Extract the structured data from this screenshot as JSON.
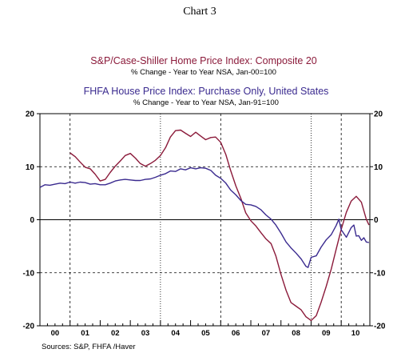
{
  "header": {
    "chart_number": "Chart 3",
    "series1_title": "S&P/Case-Shiller Home Price Index: Composite 20",
    "series1_subtitle": "% Change - Year to Year    NSA, Jan-00=100",
    "series2_title": "FHFA House Price Index: Purchase Only, United States",
    "series2_subtitle": "% Change - Year to Year    NSA, Jan-91=100"
  },
  "footer": {
    "sources": "Sources:  S&P, FHFA /Haver"
  },
  "colors": {
    "series1": "#8b1a3a",
    "series2": "#3a2a8f",
    "axis": "#000000",
    "grid": "#000000"
  },
  "chart_data": {
    "type": "line",
    "title": "Chart 3",
    "xlabel": "",
    "ylabel": "",
    "x_tick_labels": [
      "00",
      "01",
      "02",
      "03",
      "04",
      "05",
      "06",
      "07",
      "08",
      "09",
      "10"
    ],
    "x_range": [
      2000.0,
      2010.95
    ],
    "ylim": [
      -20,
      20
    ],
    "y_ticks": [
      -20,
      -10,
      0,
      10,
      20
    ],
    "y_tick_labels": [
      "-20",
      "-10",
      "0",
      "10",
      "20"
    ],
    "horizontal_gridlines": [
      0,
      10,
      -10
    ],
    "vertical_gridlines_dashed_years": [
      2001,
      2006,
      2010
    ],
    "vertical_gridlines_dotted_years": [
      2004,
      2009
    ],
    "legend": "titles above chart, colored to match series",
    "series": [
      {
        "name": "S&P/Case-Shiller Home Price Index: Composite 20",
        "color": "#8b1a3a",
        "points": [
          [
            2001.0,
            12.6
          ],
          [
            2001.17,
            11.9
          ],
          [
            2001.33,
            10.9
          ],
          [
            2001.5,
            9.9
          ],
          [
            2001.67,
            9.6
          ],
          [
            2001.83,
            8.6
          ],
          [
            2002.0,
            7.3
          ],
          [
            2002.17,
            7.6
          ],
          [
            2002.33,
            8.9
          ],
          [
            2002.5,
            10.1
          ],
          [
            2002.67,
            11.1
          ],
          [
            2002.83,
            12.1
          ],
          [
            2003.0,
            12.5
          ],
          [
            2003.17,
            11.6
          ],
          [
            2003.33,
            10.6
          ],
          [
            2003.5,
            10.1
          ],
          [
            2003.67,
            10.6
          ],
          [
            2003.83,
            11.2
          ],
          [
            2004.0,
            12.1
          ],
          [
            2004.17,
            13.6
          ],
          [
            2004.33,
            15.6
          ],
          [
            2004.5,
            16.8
          ],
          [
            2004.67,
            16.9
          ],
          [
            2004.83,
            16.3
          ],
          [
            2005.0,
            15.7
          ],
          [
            2005.17,
            16.5
          ],
          [
            2005.33,
            15.8
          ],
          [
            2005.5,
            15.1
          ],
          [
            2005.67,
            15.5
          ],
          [
            2005.83,
            15.6
          ],
          [
            2006.0,
            14.6
          ],
          [
            2006.17,
            12.3
          ],
          [
            2006.33,
            9.3
          ],
          [
            2006.5,
            6.4
          ],
          [
            2006.67,
            4.0
          ],
          [
            2006.83,
            1.3
          ],
          [
            2007.0,
            -0.2
          ],
          [
            2007.17,
            -1.2
          ],
          [
            2007.33,
            -2.4
          ],
          [
            2007.5,
            -3.6
          ],
          [
            2007.67,
            -4.5
          ],
          [
            2007.83,
            -6.8
          ],
          [
            2008.0,
            -10.3
          ],
          [
            2008.17,
            -13.3
          ],
          [
            2008.33,
            -15.6
          ],
          [
            2008.5,
            -16.3
          ],
          [
            2008.67,
            -17.0
          ],
          [
            2008.83,
            -18.3
          ],
          [
            2009.0,
            -19.0
          ],
          [
            2009.17,
            -18.1
          ],
          [
            2009.33,
            -15.6
          ],
          [
            2009.5,
            -12.6
          ],
          [
            2009.67,
            -9.3
          ],
          [
            2009.83,
            -5.6
          ],
          [
            2010.0,
            -1.8
          ],
          [
            2010.17,
            1.4
          ],
          [
            2010.33,
            3.5
          ],
          [
            2010.5,
            4.4
          ],
          [
            2010.67,
            3.3
          ],
          [
            2010.83,
            0.1
          ],
          [
            2010.92,
            -1.0
          ]
        ]
      },
      {
        "name": "FHFA House Price Index: Purchase Only, United States",
        "color": "#3a2a8f",
        "points": [
          [
            2000.0,
            6.1
          ],
          [
            2000.17,
            6.6
          ],
          [
            2000.33,
            6.5
          ],
          [
            2000.5,
            6.7
          ],
          [
            2000.67,
            6.9
          ],
          [
            2000.83,
            6.8
          ],
          [
            2001.0,
            7.1
          ],
          [
            2001.17,
            6.9
          ],
          [
            2001.33,
            7.1
          ],
          [
            2001.5,
            7.0
          ],
          [
            2001.67,
            6.7
          ],
          [
            2001.83,
            6.8
          ],
          [
            2002.0,
            6.6
          ],
          [
            2002.17,
            6.6
          ],
          [
            2002.33,
            6.9
          ],
          [
            2002.5,
            7.3
          ],
          [
            2002.67,
            7.5
          ],
          [
            2002.83,
            7.6
          ],
          [
            2003.0,
            7.5
          ],
          [
            2003.17,
            7.4
          ],
          [
            2003.33,
            7.4
          ],
          [
            2003.5,
            7.6
          ],
          [
            2003.67,
            7.7
          ],
          [
            2003.83,
            8.0
          ],
          [
            2004.0,
            8.4
          ],
          [
            2004.17,
            8.7
          ],
          [
            2004.33,
            9.2
          ],
          [
            2004.5,
            9.1
          ],
          [
            2004.67,
            9.6
          ],
          [
            2004.83,
            9.4
          ],
          [
            2005.0,
            9.8
          ],
          [
            2005.17,
            9.6
          ],
          [
            2005.33,
            9.8
          ],
          [
            2005.5,
            9.7
          ],
          [
            2005.67,
            9.3
          ],
          [
            2005.83,
            8.4
          ],
          [
            2006.0,
            7.8
          ],
          [
            2006.17,
            6.9
          ],
          [
            2006.33,
            5.6
          ],
          [
            2006.5,
            4.7
          ],
          [
            2006.67,
            3.6
          ],
          [
            2006.83,
            2.9
          ],
          [
            2007.0,
            2.8
          ],
          [
            2007.17,
            2.5
          ],
          [
            2007.33,
            1.9
          ],
          [
            2007.5,
            0.9
          ],
          [
            2007.67,
            0.1
          ],
          [
            2007.83,
            -1.0
          ],
          [
            2008.0,
            -2.5
          ],
          [
            2008.17,
            -4.2
          ],
          [
            2008.33,
            -5.3
          ],
          [
            2008.5,
            -6.3
          ],
          [
            2008.67,
            -7.4
          ],
          [
            2008.83,
            -8.8
          ],
          [
            2008.9,
            -9.0
          ],
          [
            2009.0,
            -7.1
          ],
          [
            2009.17,
            -6.8
          ],
          [
            2009.33,
            -5.2
          ],
          [
            2009.5,
            -3.8
          ],
          [
            2009.67,
            -2.8
          ],
          [
            2009.83,
            -1.1
          ],
          [
            2009.92,
            0.1
          ],
          [
            2010.0,
            -1.9
          ],
          [
            2010.17,
            -3.3
          ],
          [
            2010.33,
            -1.5
          ],
          [
            2010.42,
            -1.0
          ],
          [
            2010.5,
            -3.1
          ],
          [
            2010.58,
            -3.0
          ],
          [
            2010.67,
            -3.9
          ],
          [
            2010.75,
            -3.4
          ],
          [
            2010.83,
            -4.2
          ],
          [
            2010.92,
            -4.3
          ]
        ]
      }
    ]
  }
}
